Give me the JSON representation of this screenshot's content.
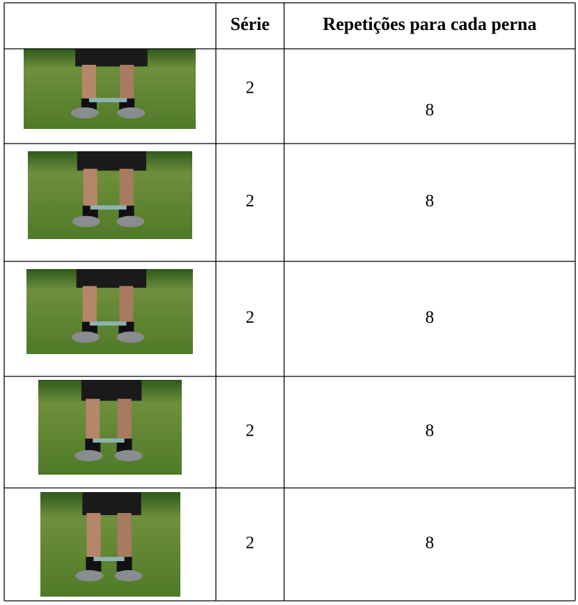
{
  "table": {
    "header": [
      "Série",
      "Repetições para cada perna"
    ],
    "rows": [
      [
        2,
        8
      ],
      [
        2,
        8
      ],
      [
        2,
        8
      ],
      [
        2,
        8
      ],
      [
        2,
        8
      ]
    ]
  }
}
